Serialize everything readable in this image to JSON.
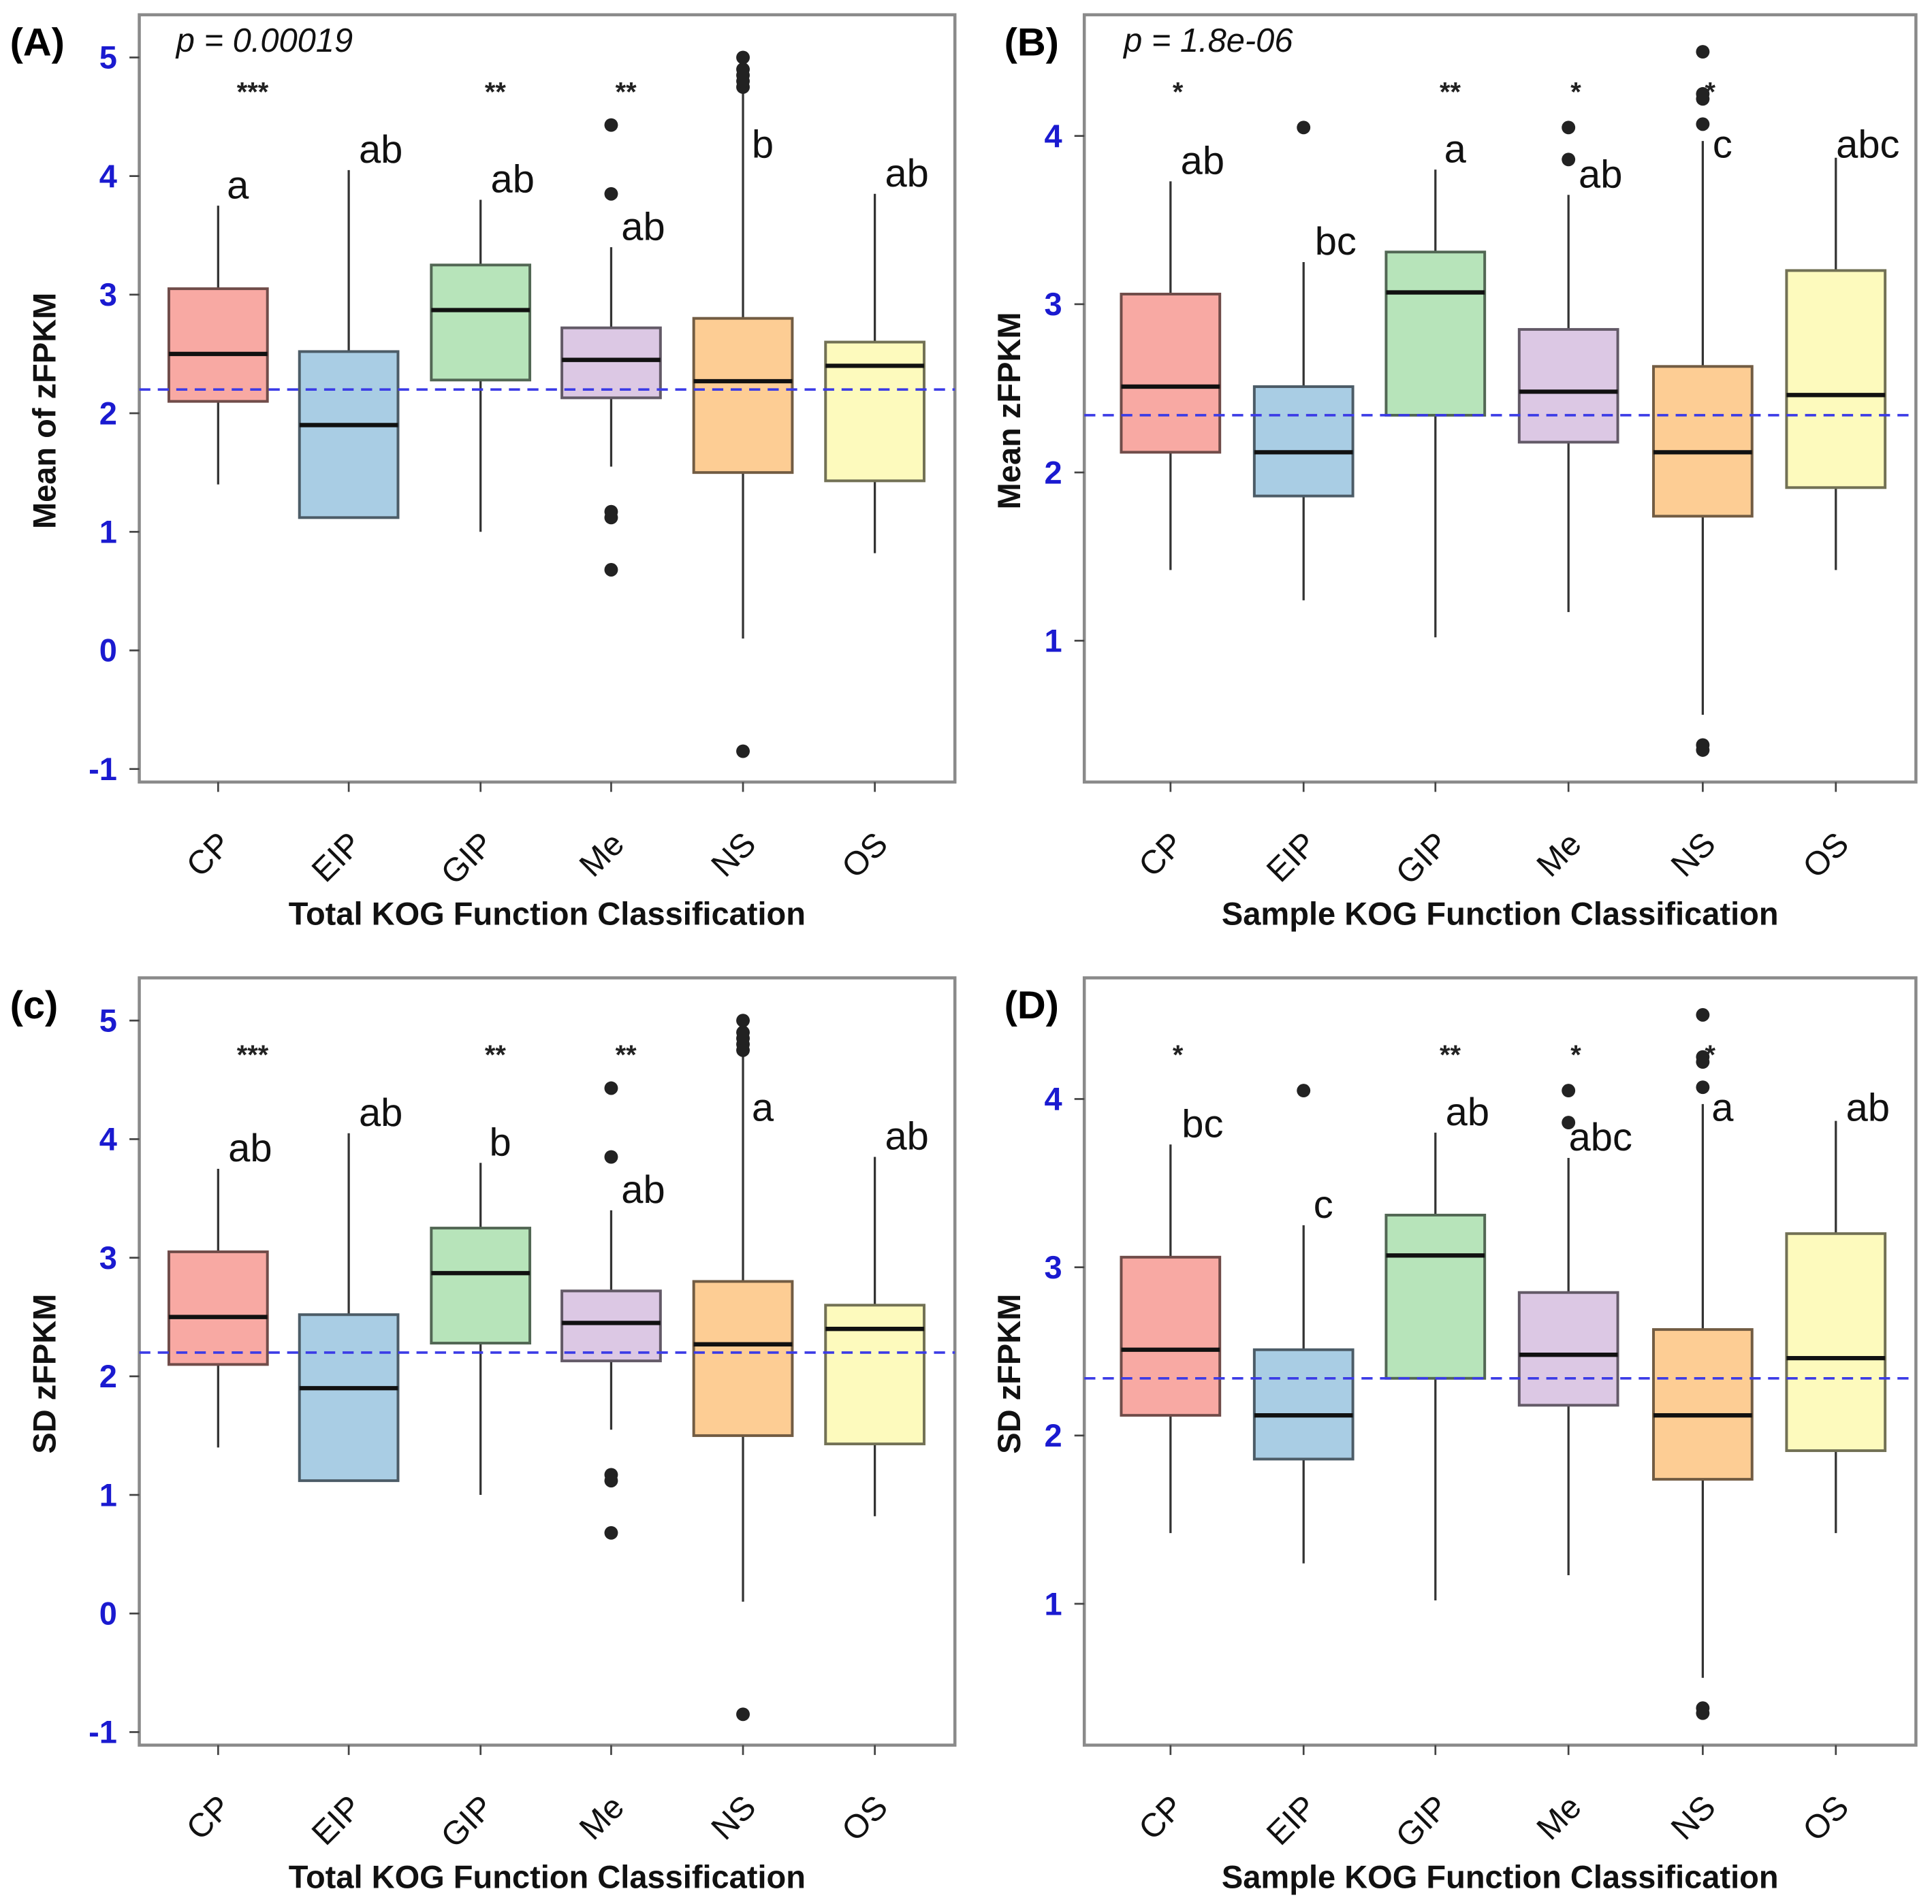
{
  "chart_data": [
    {
      "type": "box",
      "panel_label": "(A)",
      "p_value_text": "p = 0.00019",
      "xlabel": "Total KOG Function Classification",
      "ylabel": "Mean of zFPKM",
      "yticks": [
        -1,
        0,
        1,
        2,
        3,
        4,
        5
      ],
      "ylim": [
        -1.11,
        5.36
      ],
      "reference_line": 2.2,
      "categories": [
        "CP",
        "EIP",
        "GIP",
        "Me",
        "NS",
        "OS"
      ],
      "boxes": [
        {
          "category": "CP",
          "lower_whisker": 1.4,
          "q1": 2.1,
          "median": 2.5,
          "q3": 3.05,
          "upper_whisker": 3.75,
          "outliers": [],
          "significance": "***",
          "letter": "a",
          "color": "#F8A9A3"
        },
        {
          "category": "EIP",
          "lower_whisker": 1.12,
          "q1": 1.12,
          "median": 1.9,
          "q3": 2.52,
          "upper_whisker": 4.05,
          "outliers": [],
          "significance": "",
          "letter": "ab",
          "color": "#A9CDE4"
        },
        {
          "category": "GIP",
          "lower_whisker": 1.0,
          "q1": 2.28,
          "median": 2.87,
          "q3": 3.25,
          "upper_whisker": 3.8,
          "outliers": [],
          "significance": "**",
          "letter": "ab",
          "color": "#B7E4BA"
        },
        {
          "category": "Me",
          "lower_whisker": 1.55,
          "q1": 2.13,
          "median": 2.45,
          "q3": 2.72,
          "upper_whisker": 3.4,
          "outliers": [
            4.43,
            3.85,
            1.17,
            1.12,
            0.68
          ],
          "significance": "**",
          "letter": "ab",
          "color": "#DCC8E4"
        },
        {
          "category": "NS",
          "lower_whisker": 0.1,
          "q1": 1.5,
          "median": 2.27,
          "q3": 2.8,
          "upper_whisker": 4.7,
          "outliers": [
            4.75,
            4.8,
            4.85,
            4.9,
            5.0,
            -0.85
          ],
          "significance": "",
          "letter": "b",
          "color": "#FDCD94"
        },
        {
          "category": "OS",
          "lower_whisker": 0.82,
          "q1": 1.43,
          "median": 2.4,
          "q3": 2.6,
          "upper_whisker": 3.85,
          "outliers": [],
          "significance": "",
          "letter": "ab",
          "color": "#FDFABD"
        }
      ]
    },
    {
      "type": "box",
      "panel_label": "(B)",
      "p_value_text": "p = 1.8e-06",
      "xlabel": "Sample KOG Function Classification",
      "ylabel": "Mean zFPKM",
      "yticks": [
        1,
        2,
        3,
        4
      ],
      "ylim": [
        0.16,
        4.72
      ],
      "reference_line": 2.34,
      "categories": [
        "CP",
        "EIP",
        "GIP",
        "Me",
        "NS",
        "OS"
      ],
      "boxes": [
        {
          "category": "CP",
          "lower_whisker": 1.42,
          "q1": 2.12,
          "median": 2.51,
          "q3": 3.06,
          "upper_whisker": 3.73,
          "outliers": [],
          "significance": "*",
          "letter": "ab",
          "color": "#F8A9A3"
        },
        {
          "category": "EIP",
          "lower_whisker": 1.24,
          "q1": 1.86,
          "median": 2.12,
          "q3": 2.51,
          "upper_whisker": 3.25,
          "outliers": [
            4.05
          ],
          "significance": "",
          "letter": "bc",
          "color": "#A9CDE4"
        },
        {
          "category": "GIP",
          "lower_whisker": 1.02,
          "q1": 2.34,
          "median": 3.07,
          "q3": 3.31,
          "upper_whisker": 3.8,
          "outliers": [],
          "significance": "**",
          "letter": "a",
          "color": "#B7E4BA"
        },
        {
          "category": "Me",
          "lower_whisker": 1.17,
          "q1": 2.18,
          "median": 2.48,
          "q3": 2.85,
          "upper_whisker": 3.65,
          "outliers": [
            4.05,
            3.86
          ],
          "significance": "*",
          "letter": "ab",
          "color": "#DCC8E4"
        },
        {
          "category": "NS",
          "lower_whisker": 0.56,
          "q1": 1.74,
          "median": 2.12,
          "q3": 2.63,
          "upper_whisker": 3.97,
          "outliers": [
            4.5,
            4.25,
            4.22,
            4.07,
            0.38,
            0.35
          ],
          "significance": "*",
          "letter": "c",
          "color": "#FDCD94"
        },
        {
          "category": "OS",
          "lower_whisker": 1.42,
          "q1": 1.91,
          "median": 2.46,
          "q3": 3.2,
          "upper_whisker": 3.87,
          "outliers": [],
          "significance": "",
          "letter": "abc",
          "color": "#FDFABD"
        }
      ]
    },
    {
      "type": "box",
      "panel_label": "(c)",
      "p_value_text": "",
      "xlabel": "Total KOG Function Classification",
      "ylabel": "SD zFPKM",
      "yticks": [
        -1,
        0,
        1,
        2,
        3,
        4,
        5
      ],
      "ylim": [
        -1.11,
        5.36
      ],
      "reference_line": 2.2,
      "categories": [
        "CP",
        "EIP",
        "GIP",
        "Me",
        "NS",
        "OS"
      ],
      "boxes": [
        {
          "category": "CP",
          "lower_whisker": 1.4,
          "q1": 2.1,
          "median": 2.5,
          "q3": 3.05,
          "upper_whisker": 3.75,
          "outliers": [],
          "significance": "***",
          "letter": "ab",
          "color": "#F8A9A3"
        },
        {
          "category": "EIP",
          "lower_whisker": 1.12,
          "q1": 1.12,
          "median": 1.9,
          "q3": 2.52,
          "upper_whisker": 4.05,
          "outliers": [],
          "significance": "",
          "letter": "ab",
          "color": "#A9CDE4"
        },
        {
          "category": "GIP",
          "lower_whisker": 1.0,
          "q1": 2.28,
          "median": 2.87,
          "q3": 3.25,
          "upper_whisker": 3.8,
          "outliers": [],
          "significance": "**",
          "letter": "b",
          "color": "#B7E4BA"
        },
        {
          "category": "Me",
          "lower_whisker": 1.55,
          "q1": 2.13,
          "median": 2.45,
          "q3": 2.72,
          "upper_whisker": 3.4,
          "outliers": [
            4.43,
            3.85,
            1.17,
            1.12,
            0.68
          ],
          "significance": "**",
          "letter": "ab",
          "color": "#DCC8E4"
        },
        {
          "category": "NS",
          "lower_whisker": 0.1,
          "q1": 1.5,
          "median": 2.27,
          "q3": 2.8,
          "upper_whisker": 4.7,
          "outliers": [
            4.75,
            4.8,
            4.85,
            4.9,
            5.0,
            -0.85
          ],
          "significance": "",
          "letter": "a",
          "color": "#FDCD94"
        },
        {
          "category": "OS",
          "lower_whisker": 0.82,
          "q1": 1.43,
          "median": 2.4,
          "q3": 2.6,
          "upper_whisker": 3.85,
          "outliers": [],
          "significance": "",
          "letter": "ab",
          "color": "#FDFABD"
        }
      ]
    },
    {
      "type": "box",
      "panel_label": "(D)",
      "p_value_text": "",
      "xlabel": "Sample KOG Function Classification",
      "ylabel": "SD zFPKM",
      "yticks": [
        1,
        2,
        3,
        4
      ],
      "ylim": [
        0.16,
        4.72
      ],
      "reference_line": 2.34,
      "categories": [
        "CP",
        "EIP",
        "GIP",
        "Me",
        "NS",
        "OS"
      ],
      "boxes": [
        {
          "category": "CP",
          "lower_whisker": 1.42,
          "q1": 2.12,
          "median": 2.51,
          "q3": 3.06,
          "upper_whisker": 3.73,
          "outliers": [],
          "significance": "*",
          "letter": "bc",
          "color": "#F8A9A3"
        },
        {
          "category": "EIP",
          "lower_whisker": 1.24,
          "q1": 1.86,
          "median": 2.12,
          "q3": 2.51,
          "upper_whisker": 3.25,
          "outliers": [
            4.05
          ],
          "significance": "",
          "letter": "c",
          "color": "#A9CDE4"
        },
        {
          "category": "GIP",
          "lower_whisker": 1.02,
          "q1": 2.34,
          "median": 3.07,
          "q3": 3.31,
          "upper_whisker": 3.8,
          "outliers": [],
          "significance": "**",
          "letter": "ab",
          "color": "#B7E4BA"
        },
        {
          "category": "Me",
          "lower_whisker": 1.17,
          "q1": 2.18,
          "median": 2.48,
          "q3": 2.85,
          "upper_whisker": 3.65,
          "outliers": [
            4.05,
            3.86
          ],
          "significance": "*",
          "letter": "abc",
          "color": "#DCC8E4"
        },
        {
          "category": "NS",
          "lower_whisker": 0.56,
          "q1": 1.74,
          "median": 2.12,
          "q3": 2.63,
          "upper_whisker": 3.97,
          "outliers": [
            4.5,
            4.25,
            4.22,
            4.07,
            0.38,
            0.35
          ],
          "significance": "*",
          "letter": "a",
          "color": "#FDCD94"
        },
        {
          "category": "OS",
          "lower_whisker": 1.42,
          "q1": 1.91,
          "median": 2.46,
          "q3": 3.2,
          "upper_whisker": 3.87,
          "outliers": [],
          "significance": "",
          "letter": "ab",
          "color": "#FDFABD"
        }
      ]
    }
  ],
  "colors": {
    "reference_line": "#3b3be6",
    "tick_labels": "#1a1ad0"
  }
}
